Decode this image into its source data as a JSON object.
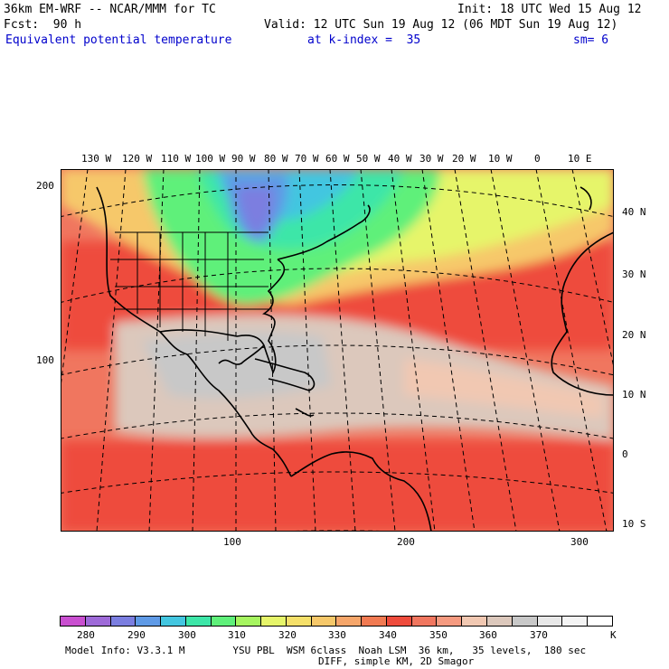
{
  "header": {
    "model": "36km EM-WRF -- NCAR/MMM for TC",
    "init": "Init: 18 UTC Wed 15 Aug 12",
    "fcst": "Fcst:  90 h",
    "valid": "Valid: 12 UTC Sun 19 Aug 12 (06 MDT Sun 19 Aug 12)",
    "field": "Equivalent potential temperature",
    "level": "at k-index =  35",
    "smooth": "sm= 6"
  },
  "axes": {
    "top_lon": [
      "130 W",
      "120 W",
      "110 W",
      "100 W",
      "90 W",
      "80 W",
      "70 W",
      "60 W",
      "50 W",
      "40 W",
      "30 W",
      "20 W",
      "10 W",
      "0",
      "10 E"
    ],
    "right_lat": [
      "40 N",
      "30 N",
      "20 N",
      "10 N",
      "0",
      "10 S"
    ],
    "left_grid": [
      "200",
      "100"
    ],
    "bottom_grid": [
      "100",
      "200",
      "300"
    ]
  },
  "colorbar": {
    "labels": [
      "280",
      "290",
      "300",
      "310",
      "320",
      "330",
      "340",
      "350",
      "360",
      "370"
    ],
    "unit": "K",
    "colors": [
      "#c94fd0",
      "#9e6ad8",
      "#7b7ee0",
      "#5f9ae6",
      "#43c6e0",
      "#3de6a8",
      "#5ff07a",
      "#a6f560",
      "#e6f56a",
      "#f5e06a",
      "#f6c86a",
      "#f6a66a",
      "#f17a52",
      "#ee4b3c",
      "#f0765f",
      "#f59a80",
      "#f1c8b2",
      "#dcc8bc",
      "#c8c8c8",
      "#e8e8e8",
      "#f4f4f4",
      "#ffffff"
    ]
  },
  "footer": {
    "line1": "Model Info: V3.3.1 M        YSU PBL  WSM 6class  Noah LSM  36 km,   35 levels,  180 sec",
    "line2": "DIFF, simple KM, 2D Smagor"
  }
}
